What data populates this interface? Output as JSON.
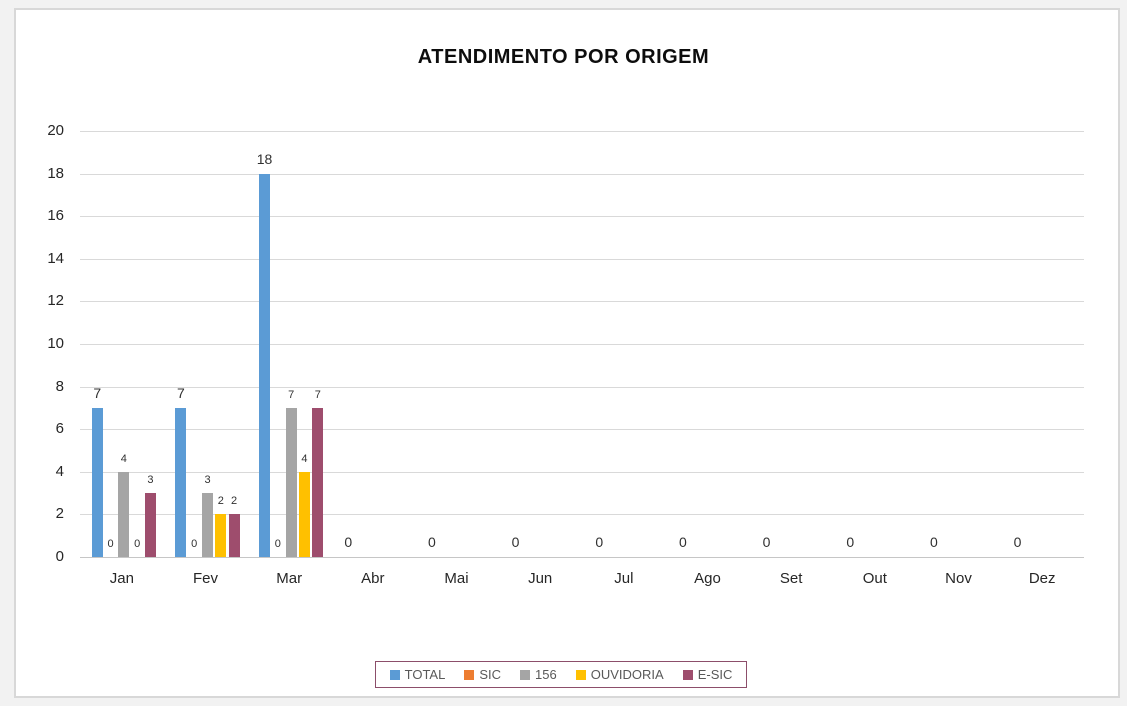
{
  "chart_data": {
    "type": "bar",
    "title": "ATENDIMENTO POR ORIGEM",
    "categories": [
      "Jan",
      "Fev",
      "Mar",
      "Abr",
      "Mai",
      "Jun",
      "Jul",
      "Ago",
      "Set",
      "Out",
      "Nov",
      "Dez"
    ],
    "series": [
      {
        "name": "TOTAL",
        "color": "#5B9BD5",
        "values": [
          7,
          7,
          18,
          0,
          0,
          0,
          0,
          0,
          0,
          0,
          0,
          0
        ]
      },
      {
        "name": "SIC",
        "color": "#ED7D31",
        "values": [
          0,
          0,
          0,
          null,
          null,
          null,
          null,
          null,
          null,
          null,
          null,
          null
        ]
      },
      {
        "name": "156",
        "color": "#A5A5A5",
        "values": [
          4,
          3,
          7,
          null,
          null,
          null,
          null,
          null,
          null,
          null,
          null,
          null
        ]
      },
      {
        "name": "OUVIDORIA",
        "color": "#FFC000",
        "values": [
          0,
          2,
          4,
          null,
          null,
          null,
          null,
          null,
          null,
          null,
          null,
          null
        ]
      },
      {
        "name": "E-SIC",
        "color": "#9E4D6D",
        "values": [
          3,
          2,
          7,
          null,
          null,
          null,
          null,
          null,
          null,
          null,
          null,
          null
        ]
      }
    ],
    "ylim": [
      0,
      20
    ],
    "ytick_step": 2,
    "grid": true,
    "data_labels": true,
    "legend_position": "bottom"
  },
  "colors": {
    "gridline": "#D9D9D9",
    "axis_line": "#C6C6C6",
    "axis_text": "#262626",
    "value_label_text": "#303030",
    "legend_border": "#8C4E6A",
    "legend_text": "#595959",
    "frame_border": "#D8D8D8",
    "plot_background": "#FFFFFF"
  }
}
